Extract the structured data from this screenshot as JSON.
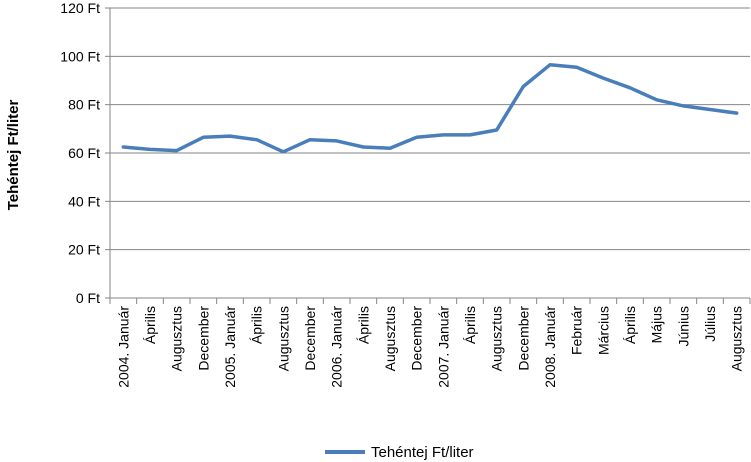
{
  "chart_data": {
    "type": "line",
    "title": "",
    "xlabel": "",
    "ylabel": "Tehéntej Ft/liter",
    "ylim": [
      0,
      120
    ],
    "yticks": [
      "0 Ft",
      "20 Ft",
      "40 Ft",
      "60 Ft",
      "80 Ft",
      "100 Ft",
      "120 Ft"
    ],
    "grid": true,
    "legend_position": "bottom",
    "categories": [
      "2004. Január",
      "Április",
      "Augusztus",
      "December",
      "2005. Január",
      "Április",
      "Augusztus",
      "December",
      "2006. Január",
      "Április",
      "Augusztus",
      "December",
      "2007. Január",
      "Április",
      "Augusztus",
      "December",
      "2008. Január",
      "Február",
      "Március",
      "Április",
      "Május",
      "Június",
      "Július",
      "Augusztus"
    ],
    "series": [
      {
        "name": "Tehéntej Ft/liter",
        "color": "#4a7ebb",
        "values": [
          62.5,
          61.5,
          61,
          66.5,
          67,
          65.5,
          60.5,
          65.5,
          65,
          62.5,
          62,
          66.5,
          67.5,
          67.5,
          69.5,
          87.5,
          96.5,
          95.5,
          91,
          87,
          82,
          79.5,
          78,
          76.5
        ]
      }
    ]
  }
}
